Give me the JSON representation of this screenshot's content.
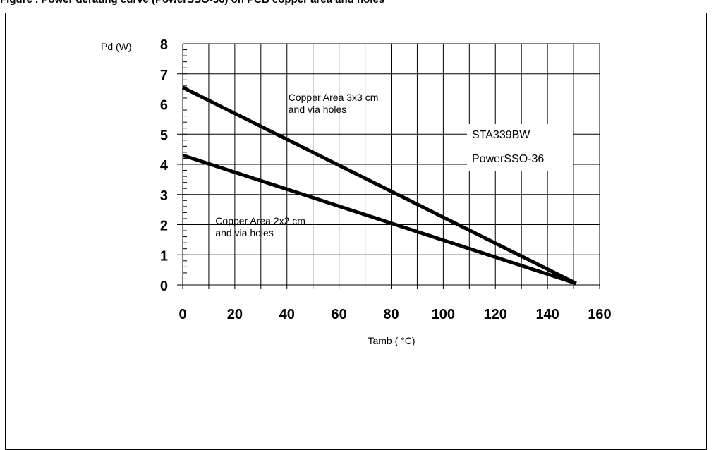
{
  "header": {
    "caption": "Figure   .   Power derating curve (PowerSSO-36) on PCB copper area and holes"
  },
  "chart_data": {
    "type": "line",
    "xlabel": "Tamb ( °C)",
    "ylabel": "Pd (W)",
    "xlim": [
      0,
      160
    ],
    "ylim": [
      0,
      8
    ],
    "x_ticks": [
      "0",
      "20",
      "40",
      "60",
      "80",
      "100",
      "120",
      "140",
      "160"
    ],
    "y_ticks": [
      "0",
      "1",
      "2",
      "3",
      "4",
      "5",
      "6",
      "7",
      "8"
    ],
    "grid": true,
    "series": [
      {
        "x": [
          0,
          151
        ],
        "y": [
          6.55,
          0.05
        ]
      },
      {
        "x": [
          0,
          151
        ],
        "y": [
          4.3,
          0.05
        ]
      }
    ],
    "annotations": [
      {
        "lines": [
          "Copper Area 3x3 cm",
          "and via holes"
        ],
        "x": 40,
        "y": 6.2
      },
      {
        "lines": [
          "Copper Area 2x2 cm",
          "and via holes"
        ],
        "x": 12,
        "y": 2.1
      }
    ],
    "legend": {
      "lines": [
        "STA339BW",
        "PowerSSO-36"
      ],
      "placement": "right"
    }
  }
}
